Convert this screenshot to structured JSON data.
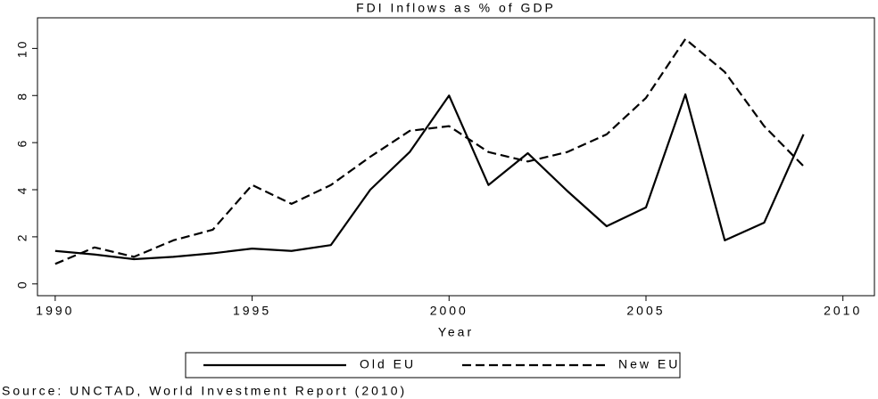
{
  "chart_data": {
    "type": "line",
    "title": "FDI Inflows as % of GDP",
    "x_label": "Year",
    "source": "Source: UNCTAD, World Investment Report (2010)",
    "x": [
      1990,
      1991,
      1992,
      1993,
      1994,
      1995,
      1996,
      1997,
      1998,
      1999,
      2000,
      2001,
      2002,
      2003,
      2004,
      2005,
      2006,
      2007,
      2008,
      2009
    ],
    "series": [
      {
        "name": "Old EU",
        "color": "#000000",
        "dashed": false,
        "values": [
          1.4,
          1.25,
          1.05,
          1.15,
          1.3,
          1.5,
          1.4,
          1.65,
          4.0,
          5.6,
          8.0,
          4.2,
          5.55,
          3.95,
          2.45,
          3.25,
          8.05,
          1.85,
          2.6,
          6.35
        ]
      },
      {
        "name": "New EU",
        "color": "#000000",
        "dashed": true,
        "values": [
          0.85,
          1.55,
          1.15,
          1.85,
          2.3,
          4.2,
          3.4,
          4.2,
          5.4,
          6.5,
          6.7,
          5.6,
          5.2,
          5.6,
          6.35,
          7.9,
          10.4,
          9.0,
          6.7,
          5.0
        ]
      }
    ],
    "xlim": [
      1989.55,
      2010.8
    ],
    "ylim": [
      -0.5,
      11.3
    ],
    "xticks": [
      1990,
      1995,
      2000,
      2005,
      2010
    ],
    "yticks": [
      0,
      2,
      4,
      6,
      8,
      10
    ],
    "legend": "bottom"
  }
}
